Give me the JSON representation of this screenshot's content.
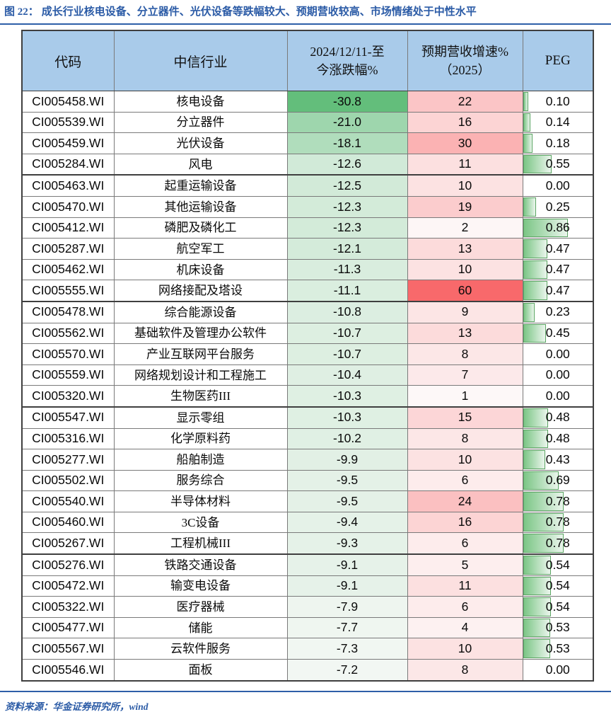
{
  "title": {
    "prefix": "图 22：",
    "text": "成长行业核电设备、分立器件、光伏设备等跌幅较大、预期营收较高、市场情绪处于中性水平"
  },
  "footer": {
    "label": "资料来源：",
    "text": "华金证券研究所，wind"
  },
  "table": {
    "headers": {
      "code": "代码",
      "industry": "中信行业",
      "change_line1": "2024/12/11-至",
      "change_line2": "今涨跌幅%",
      "revenue_line1": "预期营收增速%",
      "revenue_line2": "（2025）",
      "peg": "PEG"
    },
    "rows": [
      {
        "code": "CI005458.WI",
        "industry": "核电设备",
        "change": "-30.8",
        "revenue": "22",
        "peg": "0.10",
        "group_end": false
      },
      {
        "code": "CI005539.WI",
        "industry": "分立器件",
        "change": "-21.0",
        "revenue": "16",
        "peg": "0.14",
        "group_end": false
      },
      {
        "code": "CI005459.WI",
        "industry": "光伏设备",
        "change": "-18.1",
        "revenue": "30",
        "peg": "0.18",
        "group_end": false
      },
      {
        "code": "CI005284.WI",
        "industry": "风电",
        "change": "-12.6",
        "revenue": "11",
        "peg": "0.55",
        "group_end": true
      },
      {
        "code": "CI005463.WI",
        "industry": "起重运输设备",
        "change": "-12.5",
        "revenue": "10",
        "peg": "0.00",
        "group_end": false
      },
      {
        "code": "CI005470.WI",
        "industry": "其他运输设备",
        "change": "-12.3",
        "revenue": "19",
        "peg": "0.25",
        "group_end": false
      },
      {
        "code": "CI005412.WI",
        "industry": "磷肥及磷化工",
        "change": "-12.3",
        "revenue": "2",
        "peg": "0.86",
        "group_end": false
      },
      {
        "code": "CI005287.WI",
        "industry": "航空军工",
        "change": "-12.1",
        "revenue": "13",
        "peg": "0.47",
        "group_end": false
      },
      {
        "code": "CI005462.WI",
        "industry": "机床设备",
        "change": "-11.3",
        "revenue": "10",
        "peg": "0.47",
        "group_end": false
      },
      {
        "code": "CI005555.WI",
        "industry": "网络接配及塔设",
        "change": "-11.1",
        "revenue": "60",
        "peg": "0.47",
        "group_end": true
      },
      {
        "code": "CI005478.WI",
        "industry": "综合能源设备",
        "change": "-10.8",
        "revenue": "9",
        "peg": "0.23",
        "group_end": false
      },
      {
        "code": "CI005562.WI",
        "industry": "基础软件及管理办公软件",
        "change": "-10.7",
        "revenue": "13",
        "peg": "0.45",
        "group_end": false
      },
      {
        "code": "CI005570.WI",
        "industry": "产业互联网平台服务",
        "change": "-10.7",
        "revenue": "8",
        "peg": "0.00",
        "group_end": false
      },
      {
        "code": "CI005559.WI",
        "industry": "网络规划设计和工程施工",
        "change": "-10.4",
        "revenue": "7",
        "peg": "0.00",
        "group_end": false
      },
      {
        "code": "CI005320.WI",
        "industry": "生物医药III",
        "change": "-10.3",
        "revenue": "1",
        "peg": "0.00",
        "group_end": true
      },
      {
        "code": "CI005547.WI",
        "industry": "显示零组",
        "change": "-10.3",
        "revenue": "15",
        "peg": "0.48",
        "group_end": false
      },
      {
        "code": "CI005316.WI",
        "industry": "化学原料药",
        "change": "-10.2",
        "revenue": "8",
        "peg": "0.48",
        "group_end": false
      },
      {
        "code": "CI005277.WI",
        "industry": "船舶制造",
        "change": "-9.9",
        "revenue": "10",
        "peg": "0.43",
        "group_end": false
      },
      {
        "code": "CI005502.WI",
        "industry": "服务综合",
        "change": "-9.5",
        "revenue": "6",
        "peg": "0.69",
        "group_end": false
      },
      {
        "code": "CI005540.WI",
        "industry": "半导体材料",
        "change": "-9.5",
        "revenue": "24",
        "peg": "0.78",
        "group_end": false
      },
      {
        "code": "CI005460.WI",
        "industry": "3C设备",
        "change": "-9.4",
        "revenue": "16",
        "peg": "0.78",
        "group_end": false
      },
      {
        "code": "CI005267.WI",
        "industry": "工程机械III",
        "change": "-9.3",
        "revenue": "6",
        "peg": "0.78",
        "group_end": true
      },
      {
        "code": "CI005276.WI",
        "industry": "铁路交通设备",
        "change": "-9.1",
        "revenue": "5",
        "peg": "0.54",
        "group_end": false
      },
      {
        "code": "CI005472.WI",
        "industry": "输变电设备",
        "change": "-9.1",
        "revenue": "11",
        "peg": "0.54",
        "group_end": false
      },
      {
        "code": "CI005322.WI",
        "industry": "医疗器械",
        "change": "-7.9",
        "revenue": "6",
        "peg": "0.54",
        "group_end": false
      },
      {
        "code": "CI005477.WI",
        "industry": "储能",
        "change": "-7.7",
        "revenue": "4",
        "peg": "0.53",
        "group_end": false
      },
      {
        "code": "CI005567.WI",
        "industry": "云软件服务",
        "change": "-7.3",
        "revenue": "10",
        "peg": "0.53",
        "group_end": false
      },
      {
        "code": "CI005546.WI",
        "industry": "面板",
        "change": "-7.2",
        "revenue": "8",
        "peg": "0.00",
        "group_end": false
      }
    ]
  },
  "scales": {
    "change": {
      "min": -30.8,
      "max": -7.2,
      "strong": "#63BE7B",
      "light": "#F2F7F3"
    },
    "revenue": {
      "min": 1,
      "max": 60,
      "strong": "#F8696B",
      "light": "#FDF8F8"
    },
    "peg": {
      "max_ref": 0.86,
      "max_width_pct": 64,
      "bar_from": "#7CC686",
      "bar_to": "#EAF5EC",
      "bar_border": "#5BA563"
    }
  },
  "colors": {
    "accent_blue": "#2B5BA6",
    "rule_blue": "#2E5FA8",
    "header_bg": "#A9CBEA",
    "grid_line": "#7a7a7a",
    "outer_border": "#3f3f3f"
  }
}
